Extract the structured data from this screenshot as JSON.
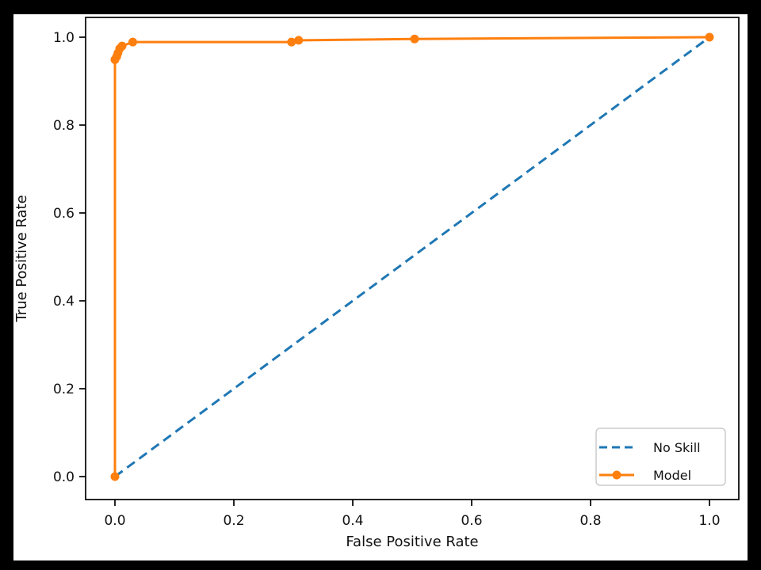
{
  "figure": {
    "frame_background": "#000000",
    "figure_background": "#ffffff"
  },
  "chart_data": {
    "type": "line",
    "title": "",
    "xlabel": "False Positive Rate",
    "ylabel": "True Positive Rate",
    "xlim": [
      0.0,
      1.0
    ],
    "ylim": [
      0.0,
      1.0
    ],
    "xticks": [
      0.0,
      0.2,
      0.4,
      0.6,
      0.8,
      1.0
    ],
    "yticks": [
      0.0,
      0.2,
      0.4,
      0.6,
      0.8,
      1.0
    ],
    "xtick_labels": [
      "0.0",
      "0.2",
      "0.4",
      "0.6",
      "0.8",
      "1.0"
    ],
    "ytick_labels": [
      "0.0",
      "0.2",
      "0.4",
      "0.6",
      "0.8",
      "1.0"
    ],
    "grid": false,
    "legend": {
      "position": "lower right",
      "border_color": "#cccccc",
      "background": "#ffffff",
      "entries": [
        {
          "label": "No Skill",
          "color": "#1f77b4",
          "style": "dashed",
          "marker": "none"
        },
        {
          "label": "Model",
          "color": "#ff7f0e",
          "style": "solid",
          "marker": "circle"
        }
      ]
    },
    "series": [
      {
        "name": "No Skill",
        "color": "#1f77b4",
        "style": "dashed",
        "marker": "none",
        "points": [
          [
            0.0,
            0.0
          ],
          [
            1.0,
            1.0
          ]
        ]
      },
      {
        "name": "Model",
        "color": "#ff7f0e",
        "style": "solid",
        "marker": "circle",
        "points": [
          [
            0.0,
            0.0
          ],
          [
            0.0,
            0.949
          ],
          [
            0.003,
            0.956
          ],
          [
            0.005,
            0.964
          ],
          [
            0.008,
            0.974
          ],
          [
            0.012,
            0.98
          ],
          [
            0.03,
            0.989
          ],
          [
            0.297,
            0.989
          ],
          [
            0.309,
            0.993
          ],
          [
            0.504,
            0.996
          ],
          [
            1.0,
            1.0
          ]
        ]
      }
    ]
  }
}
